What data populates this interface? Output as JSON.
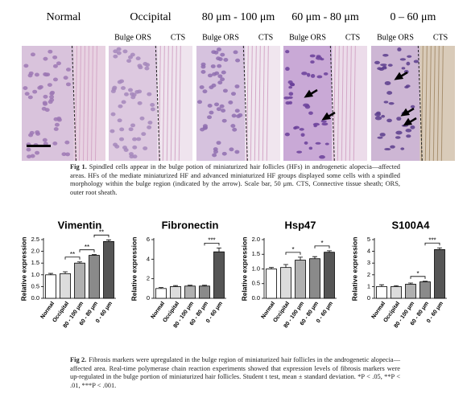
{
  "figure1": {
    "panels": [
      {
        "title": "Normal"
      },
      {
        "title": "Occipital",
        "left": "Bulge ORS",
        "right": "CTS"
      },
      {
        "title": "80 μm - 100 μm",
        "left": "Bulge ORS",
        "right": "CTS"
      },
      {
        "title": "60 μm - 80 μm",
        "left": "Bulge ORS",
        "right": "CTS"
      },
      {
        "title": "0 – 60 μm",
        "left": "Bulge ORS",
        "right": "CTS"
      }
    ],
    "caption_label": "Fig 1.",
    "caption": "Spindled cells appear in the bulge potion of miniaturized hair follicles (HFs) in androgenetic alopecia—affected areas. HFs of the mediate miniaturized HF and advanced miniaturized HF groups displayed some cells with a spindled morphology within the bulge region (indicated by the arrow). Scale bar, 50 μm. CTS, Connective tissue sheath; ORS, outer root sheath."
  },
  "chart_data": [
    {
      "type": "bar",
      "title": "Vimentin",
      "y_label": "Relative expression",
      "categories": [
        "Normal",
        "Occipital",
        "80 - 100 μm",
        "60 - 80 μm",
        "0 - 60 μm"
      ],
      "values": [
        1.0,
        1.05,
        1.5,
        1.83,
        2.42
      ],
      "errors": [
        0.06,
        0.08,
        0.05,
        0.03,
        0.07
      ],
      "colors": [
        "#ffffff",
        "#dcdcdc",
        "#b0b0b0",
        "#8a8a8a",
        "#555555"
      ],
      "ylim": [
        0,
        2.5
      ],
      "yticks": [
        {
          "value": 0,
          "label": "0.0"
        },
        0.5,
        {
          "value": 1,
          "label": "1.0"
        },
        1.5,
        {
          "value": 2,
          "label": "2.0"
        },
        2.5
      ],
      "significance": [
        {
          "label": "**",
          "between": [
            "Occipital",
            "80 - 100 μm"
          ]
        },
        {
          "label": "**",
          "between": [
            "80 - 100 μm",
            "60 - 80 μm"
          ]
        },
        {
          "label": "**",
          "between": [
            "60 - 80 μm",
            "0 - 60 μm"
          ]
        }
      ]
    },
    {
      "type": "bar",
      "title": "Fibronectin",
      "y_label": "Relative expression",
      "categories": [
        "Normal",
        "Occipital",
        "80 - 100 μm",
        "60 - 80 μm",
        "0 - 60 μm"
      ],
      "values": [
        1.0,
        1.2,
        1.25,
        1.25,
        4.75
      ],
      "errors": [
        0.1,
        0.1,
        0.08,
        0.08,
        0.4
      ],
      "colors": [
        "#ffffff",
        "#dcdcdc",
        "#b0b0b0",
        "#8a8a8a",
        "#555555"
      ],
      "ylim": [
        0,
        6
      ],
      "yticks": [
        0,
        2,
        4,
        6
      ],
      "significance": [
        {
          "label": "***",
          "between": [
            "60 - 80 μm",
            "0 - 60 μm"
          ]
        }
      ]
    },
    {
      "type": "bar",
      "title": "Hsp47",
      "y_label": "Relative expression",
      "categories": [
        "Normal",
        "Occipital",
        "80 - 100 μm",
        "60 - 80 μm",
        "0 - 60 μm"
      ],
      "values": [
        1.0,
        1.05,
        1.3,
        1.35,
        1.57
      ],
      "errors": [
        0.05,
        0.1,
        0.1,
        0.07,
        0.05
      ],
      "colors": [
        "#ffffff",
        "#dcdcdc",
        "#b0b0b0",
        "#8a8a8a",
        "#555555"
      ],
      "ylim": [
        0,
        2
      ],
      "yticks": [
        {
          "value": 0,
          "label": "0.0"
        },
        0.5,
        {
          "value": 1,
          "label": "1.0"
        },
        1.5,
        {
          "value": 2,
          "label": "2.0"
        }
      ],
      "significance": [
        {
          "label": "*",
          "between": [
            "Occipital",
            "80 - 100 μm"
          ]
        },
        {
          "label": "*",
          "between": [
            "60 - 80 μm",
            "0 - 60 μm"
          ]
        }
      ]
    },
    {
      "type": "bar",
      "title": "S100A4",
      "y_label": "Relative expression",
      "categories": [
        "Normal",
        "Occipital",
        "80 - 100 μm",
        "60 - 80 μm",
        "0 - 60 μm"
      ],
      "values": [
        1.0,
        1.0,
        1.2,
        1.4,
        4.15
      ],
      "errors": [
        0.15,
        0.08,
        0.1,
        0.05,
        0.15
      ],
      "colors": [
        "#ffffff",
        "#dcdcdc",
        "#b0b0b0",
        "#8a8a8a",
        "#555555"
      ],
      "ylim": [
        0,
        5
      ],
      "yticks": [
        0,
        1,
        2,
        3,
        4,
        5
      ],
      "significance": [
        {
          "label": "*",
          "between": [
            "80 - 100 μm",
            "60 - 80 μm"
          ]
        },
        {
          "label": "***",
          "between": [
            "60 - 80 μm",
            "0 - 60 μm"
          ]
        }
      ]
    }
  ],
  "figure2": {
    "caption_label": "Fig 2.",
    "caption": "Fibrosis markers were upregulated in the bulge region of miniaturized hair follicles in the androgenetic alopecia—affected area. Real-time polymerase chain reaction experiments showed that expression levels of fibrosis markers were up-regulated in the bulge portion of miniaturized hair follicles. Student t test, mean ± standard deviation. *P < .05, **P < .01, ***P < .001."
  }
}
